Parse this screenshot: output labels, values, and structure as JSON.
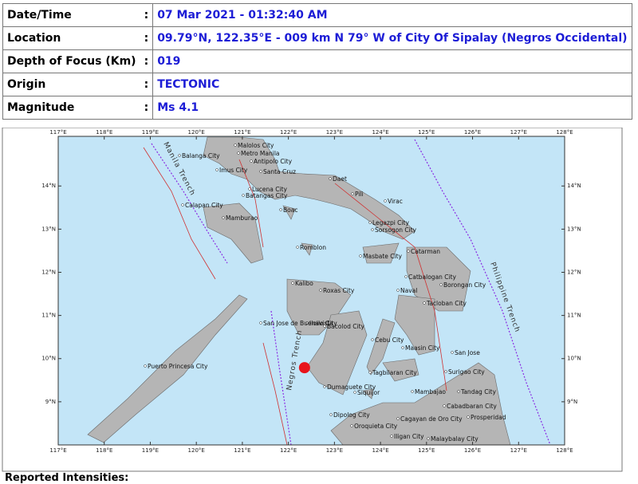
{
  "table": {
    "rows": [
      {
        "label": "Date/Time",
        "sep": ":",
        "value": "07 Mar 2021 - 01:32:40 AM"
      },
      {
        "label": "Location",
        "sep": ":",
        "value": "09.79°N, 122.35°E - 009 km N 79° W of City Of Sipalay (Negros Occidental)"
      },
      {
        "label": "Depth of Focus (Km)",
        "sep": ":",
        "value": "019"
      },
      {
        "label": "Origin",
        "sep": ":",
        "value": "TECTONIC"
      },
      {
        "label": "Magnitude",
        "sep": ":",
        "value": "Ms 4.1"
      }
    ]
  },
  "map": {
    "xlim": [
      117,
      128
    ],
    "ylim": [
      8,
      15.15
    ],
    "xticks": [
      {
        "value": 117,
        "label": "117°E"
      },
      {
        "value": 118,
        "label": "118°E"
      },
      {
        "value": 119,
        "label": "119°E"
      },
      {
        "value": 120,
        "label": "120°E"
      },
      {
        "value": 121,
        "label": "121°E"
      },
      {
        "value": 122,
        "label": "122°E"
      },
      {
        "value": 123,
        "label": "123°E"
      },
      {
        "value": 124,
        "label": "124°E"
      },
      {
        "value": 125,
        "label": "125°E"
      },
      {
        "value": 126,
        "label": "126°E"
      },
      {
        "value": 127,
        "label": "127°E"
      },
      {
        "value": 128,
        "label": "128°E"
      }
    ],
    "yticks": [
      {
        "value": 9,
        "label": "9°N"
      },
      {
        "value": 10,
        "label": "10°N"
      },
      {
        "value": 11,
        "label": "11°N"
      },
      {
        "value": 12,
        "label": "12°N"
      },
      {
        "value": 13,
        "label": "13°N"
      },
      {
        "value": 14,
        "label": "14°N"
      }
    ],
    "epicenter": {
      "lon": 122.35,
      "lat": 9.79,
      "color": "#e8141b"
    },
    "trenches": [
      "Manila Trench",
      "Negros Trench",
      "Philippine Trench"
    ],
    "cities": [
      "Malolos City",
      "Metro Manila",
      "Balanga City",
      "Antipolo City",
      "Imus City",
      "Santa Cruz",
      "Daet",
      "Lucena City",
      "Batangas City",
      "Pili",
      "Virac",
      "Calapan City",
      "Boac",
      "Mamburao",
      "Legazpi City",
      "Sorsogon City",
      "Romblon",
      "Masbate City",
      "Catarman",
      "Catbalogan City",
      "Borongan City",
      "Kalibo",
      "Roxas City",
      "Naval",
      "Tacloban City",
      "Iloilo City",
      "Bacolod City",
      "San Jose de Buenavista",
      "Cebu City",
      "Maasin City",
      "San Jose",
      "Surigao City",
      "Tagbilaran City",
      "Puerto Princesa City",
      "Dumaguete City",
      "Siquijor",
      "Mambajao",
      "Tandag City",
      "Cabadbaran City",
      "Prosperidad",
      "Dipolog City",
      "Cagayan de Oro City",
      "Oroquieta City",
      "Iligan City",
      "Malaybalay City"
    ]
  },
  "footer": "Reported Intensities:"
}
